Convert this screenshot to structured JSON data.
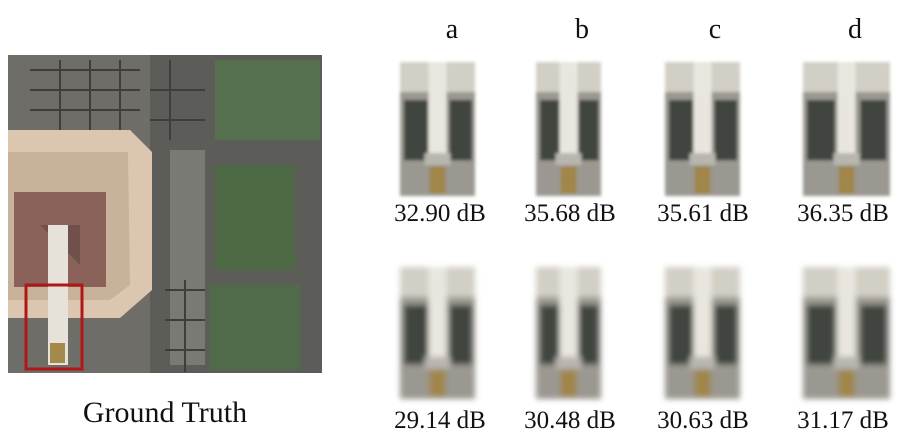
{
  "ground_truth_caption": "Ground Truth",
  "column_labels": [
    "a",
    "b",
    "c",
    "d"
  ],
  "rows": [
    [
      "32.90 dB",
      "35.68 dB",
      "35.61 dB",
      "36.35 dB"
    ],
    [
      "29.14 dB",
      "30.48 dB",
      "30.63 dB",
      "31.17 dB"
    ]
  ]
}
